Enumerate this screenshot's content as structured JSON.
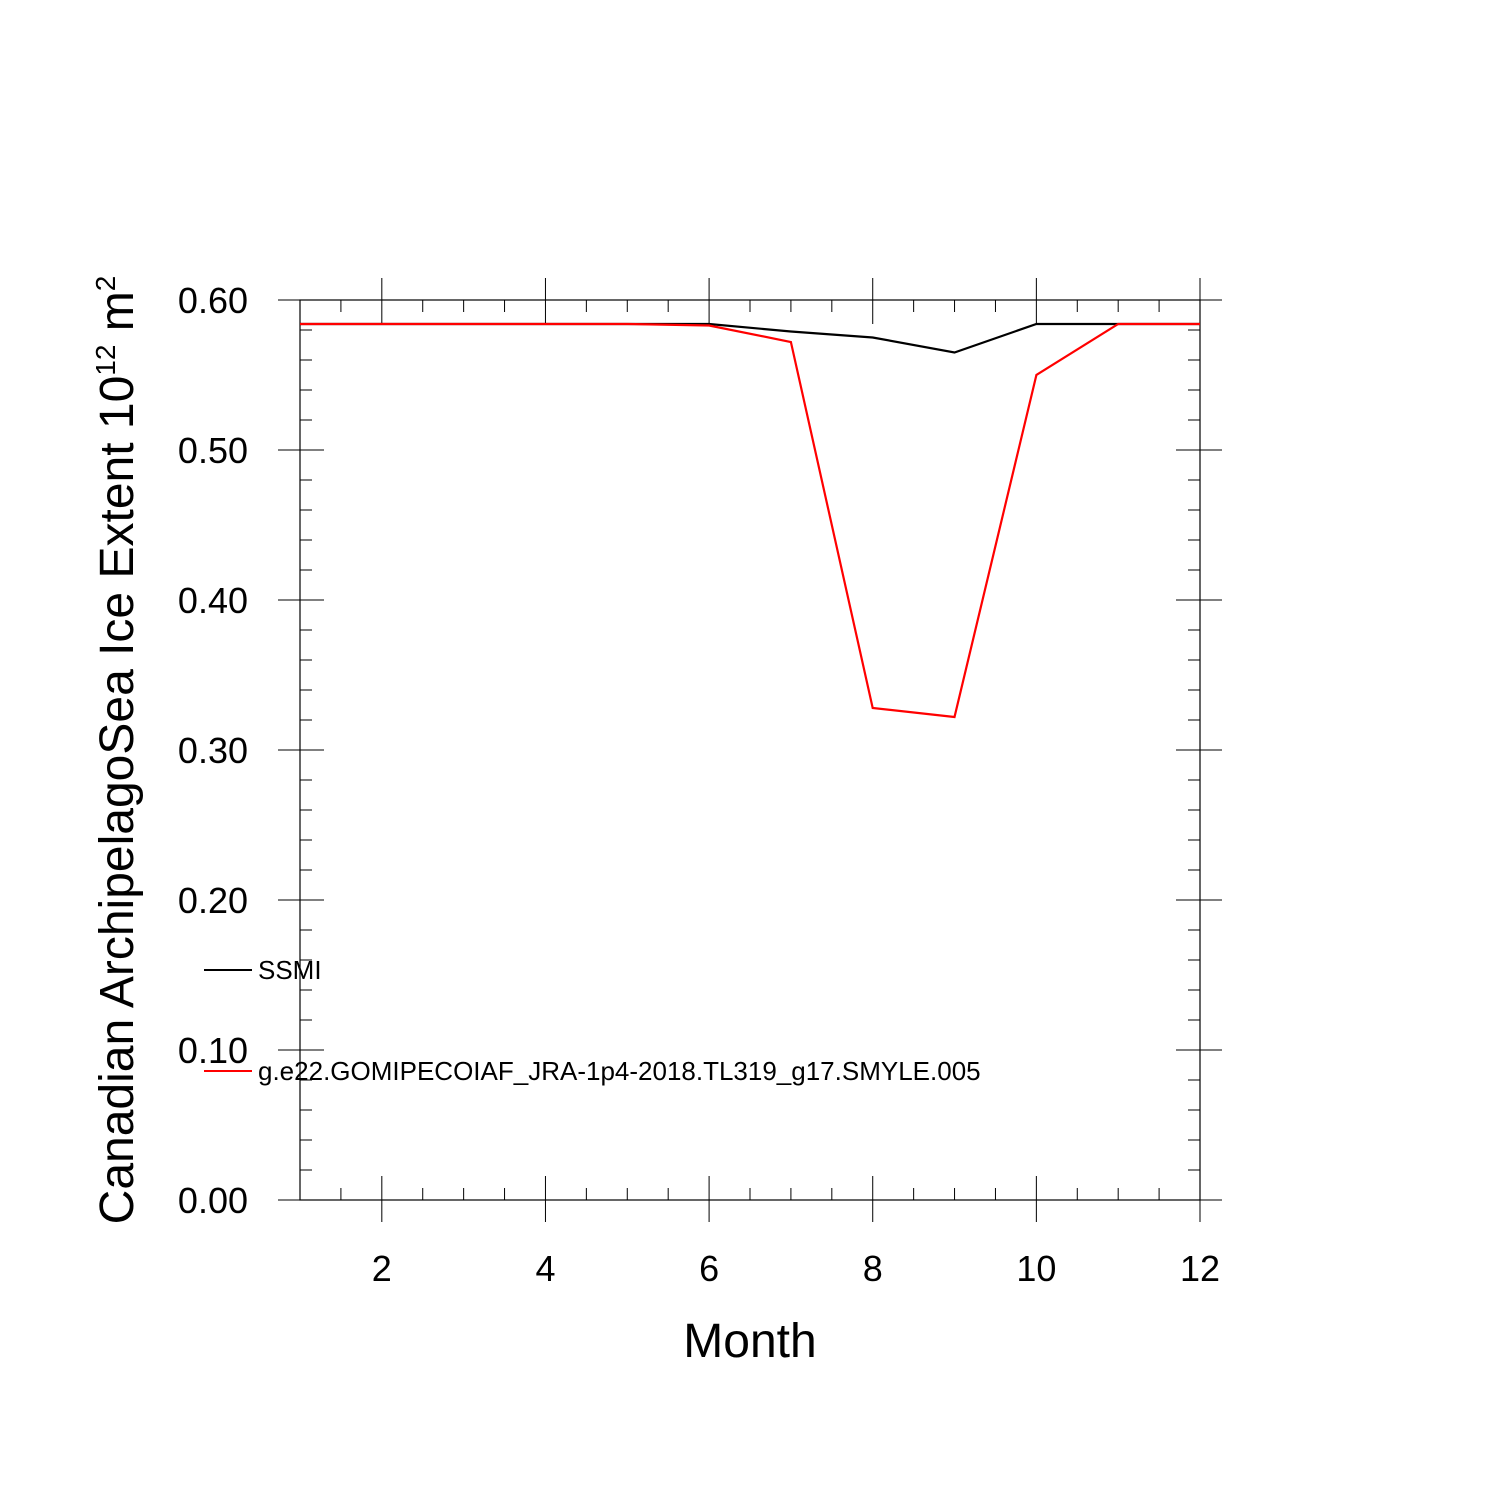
{
  "chart_data": {
    "type": "line",
    "xlabel": "Month",
    "ylabel": {
      "base": "Canadian ArchipelagoSea Ice Extent 10",
      "exp1": "12",
      "mid": " m",
      "exp2": "2"
    },
    "xlim": [
      1,
      12
    ],
    "ylim": [
      0,
      0.6
    ],
    "x_major_ticks": [
      2,
      4,
      6,
      8,
      10,
      12
    ],
    "x_tick_labels": [
      "2",
      "4",
      "6",
      "8",
      "10",
      "12"
    ],
    "x_minor_step": 0.5,
    "y_major_ticks": [
      0,
      0.1,
      0.2,
      0.3,
      0.4,
      0.5,
      0.6
    ],
    "y_tick_labels": [
      "0.00",
      "0.10",
      "0.20",
      "0.30",
      "0.40",
      "0.50",
      "0.60"
    ],
    "y_minor_step": 0.02,
    "grid": false,
    "legend_position": "lower-left inside",
    "x": [
      1,
      2,
      3,
      4,
      5,
      6,
      7,
      8,
      9,
      10,
      11,
      12
    ],
    "series": [
      {
        "name": "SSMI",
        "color": "#000000",
        "values": [
          0.584,
          0.584,
          0.584,
          0.584,
          0.584,
          0.584,
          0.579,
          0.575,
          0.565,
          0.584,
          0.584,
          0.584
        ]
      },
      {
        "name": "g.e22.GOMIPECOIAF_JRA-1p4-2018.TL319_g17.SMYLE.005",
        "color": "#ff0000",
        "values": [
          0.584,
          0.584,
          0.584,
          0.584,
          0.584,
          0.583,
          0.572,
          0.328,
          0.322,
          0.55,
          0.584,
          0.584
        ]
      }
    ]
  }
}
